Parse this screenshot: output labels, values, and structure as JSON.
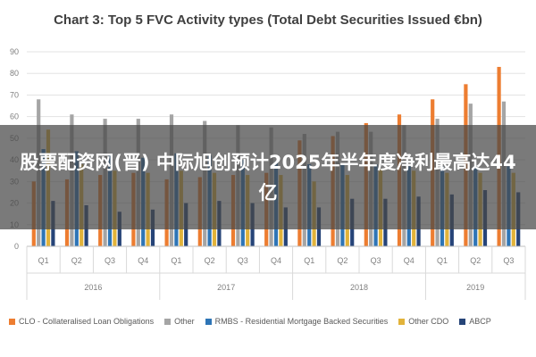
{
  "chart_data": {
    "type": "bar",
    "title": "Chart 3: Top 5 FVC Activity types (Total Debt Securities Issued €bn)",
    "quarters": [
      "Q1",
      "Q2",
      "Q3",
      "Q4",
      "Q1",
      "Q2",
      "Q3",
      "Q4",
      "Q1",
      "Q2",
      "Q3",
      "Q4",
      "Q1",
      "Q2",
      "Q3"
    ],
    "years": [
      {
        "label": "2016",
        "start": 0,
        "count": 4
      },
      {
        "label": "2017",
        "start": 4,
        "count": 4
      },
      {
        "label": "2018",
        "start": 8,
        "count": 4
      },
      {
        "label": "2019",
        "start": 12,
        "count": 3
      }
    ],
    "ylim": [
      0,
      90
    ],
    "yticks": [
      "0",
      "10",
      "20",
      "30",
      "40",
      "50",
      "60",
      "70",
      "80",
      "90"
    ],
    "grid": true,
    "legend_position": "bottom",
    "series": [
      {
        "name": "CLO - Collateralised Loan Obligations",
        "color": "#ED7D31",
        "values": [
          30,
          31,
          33,
          34,
          31,
          32,
          33,
          34,
          49,
          51,
          57,
          61,
          68,
          75,
          83
        ]
      },
      {
        "name": "Other",
        "color": "#A5A5A5",
        "values": [
          68,
          61,
          59,
          59,
          61,
          58,
          56,
          55,
          52,
          53,
          53,
          56,
          59,
          66,
          67
        ]
      },
      {
        "name": "RMBS - Residential Mortgage Backed Securities",
        "color": "#2E75B6",
        "values": [
          45,
          44,
          42,
          41,
          43,
          42,
          40,
          39,
          38,
          38,
          38,
          37,
          37,
          37,
          37
        ]
      },
      {
        "name": "Other CDO",
        "color": "#E2B33A",
        "values": [
          54,
          38,
          35,
          34,
          35,
          34,
          33,
          33,
          30,
          33,
          36,
          35,
          34,
          34,
          34
        ]
      },
      {
        "name": "ABCP",
        "color": "#264478",
        "values": [
          21,
          19,
          16,
          17,
          20,
          21,
          20,
          18,
          18,
          22,
          22,
          23,
          24,
          26,
          25
        ]
      }
    ]
  },
  "overlay": {
    "text": "股票配资网(晋) 中际旭创预计2025年半年度净利最高达44亿"
  }
}
